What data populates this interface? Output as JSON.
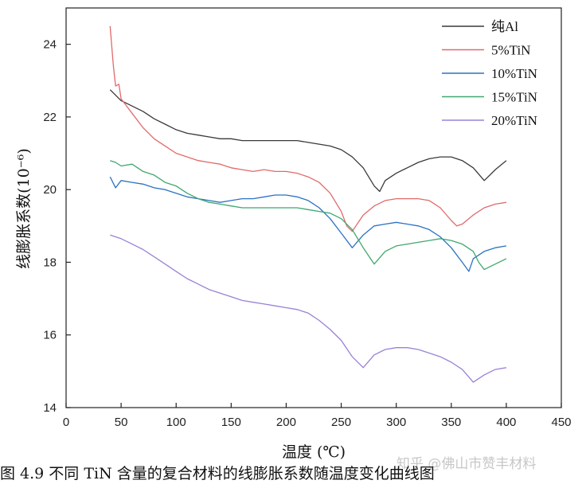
{
  "caption": "图 4.9  不同 TiN 含量的复合材料的线膨胀系数随温度变化曲线图",
  "watermark": "知乎 @佛山市赞丰材料",
  "chart_data": {
    "type": "line",
    "xlabel": "温度 (℃)",
    "ylabel": "线膨胀系数(10⁻⁶)",
    "xlim": [
      0,
      450
    ],
    "ylim": [
      14,
      25
    ],
    "xticks": [
      0,
      50,
      100,
      150,
      200,
      250,
      300,
      350,
      400,
      450
    ],
    "yticks": [
      14,
      16,
      18,
      20,
      22,
      24
    ],
    "grid": false,
    "legend_position": "top-right",
    "series": [
      {
        "name": "纯Al",
        "color": "#3a3a3a",
        "x": [
          40,
          50,
          60,
          70,
          80,
          90,
          100,
          110,
          120,
          130,
          140,
          150,
          160,
          170,
          180,
          190,
          200,
          210,
          220,
          230,
          240,
          250,
          260,
          270,
          280,
          285,
          290,
          300,
          310,
          320,
          330,
          340,
          350,
          360,
          370,
          380,
          390,
          400
        ],
        "y": [
          22.75,
          22.45,
          22.3,
          22.15,
          21.95,
          21.8,
          21.65,
          21.55,
          21.5,
          21.45,
          21.4,
          21.4,
          21.35,
          21.35,
          21.35,
          21.35,
          21.35,
          21.35,
          21.3,
          21.25,
          21.2,
          21.1,
          20.9,
          20.6,
          20.1,
          19.95,
          20.25,
          20.45,
          20.6,
          20.75,
          20.85,
          20.9,
          20.9,
          20.8,
          20.6,
          20.25,
          20.55,
          20.8
        ]
      },
      {
        "name": "5%TiN",
        "color": "#e06a6a",
        "x": [
          40,
          43,
          45,
          48,
          50,
          60,
          70,
          80,
          90,
          100,
          110,
          120,
          130,
          140,
          150,
          160,
          170,
          180,
          190,
          200,
          210,
          220,
          230,
          240,
          250,
          255,
          260,
          270,
          280,
          290,
          300,
          310,
          320,
          330,
          340,
          350,
          355,
          360,
          370,
          380,
          390,
          400
        ],
        "y": [
          24.5,
          23.4,
          22.85,
          22.9,
          22.5,
          22.1,
          21.7,
          21.4,
          21.2,
          21.0,
          20.9,
          20.8,
          20.75,
          20.7,
          20.6,
          20.55,
          20.5,
          20.55,
          20.5,
          20.5,
          20.45,
          20.35,
          20.2,
          19.9,
          19.4,
          19.0,
          18.85,
          19.3,
          19.55,
          19.7,
          19.75,
          19.75,
          19.75,
          19.7,
          19.5,
          19.15,
          19.0,
          19.05,
          19.3,
          19.5,
          19.6,
          19.65
        ]
      },
      {
        "name": "10%TiN",
        "color": "#2b72c4",
        "x": [
          40,
          45,
          50,
          60,
          70,
          80,
          90,
          100,
          110,
          120,
          130,
          140,
          150,
          160,
          170,
          180,
          190,
          200,
          210,
          220,
          230,
          240,
          250,
          260,
          270,
          280,
          290,
          300,
          310,
          320,
          330,
          340,
          350,
          360,
          366,
          370,
          380,
          390,
          400
        ],
        "y": [
          20.35,
          20.05,
          20.25,
          20.2,
          20.15,
          20.05,
          20.0,
          19.9,
          19.8,
          19.75,
          19.7,
          19.65,
          19.7,
          19.75,
          19.75,
          19.8,
          19.85,
          19.85,
          19.8,
          19.7,
          19.5,
          19.2,
          18.8,
          18.4,
          18.75,
          19.0,
          19.05,
          19.1,
          19.05,
          19.0,
          18.9,
          18.7,
          18.4,
          18.0,
          17.75,
          18.1,
          18.3,
          18.4,
          18.45
        ]
      },
      {
        "name": "15%TiN",
        "color": "#3fa86e",
        "x": [
          40,
          45,
          50,
          60,
          70,
          80,
          90,
          100,
          110,
          120,
          130,
          140,
          150,
          160,
          170,
          180,
          190,
          200,
          210,
          220,
          230,
          240,
          250,
          260,
          270,
          280,
          290,
          300,
          310,
          320,
          330,
          340,
          350,
          360,
          370,
          375,
          380,
          390,
          400
        ],
        "y": [
          20.8,
          20.75,
          20.65,
          20.7,
          20.5,
          20.4,
          20.2,
          20.1,
          19.9,
          19.75,
          19.65,
          19.6,
          19.55,
          19.5,
          19.5,
          19.5,
          19.5,
          19.5,
          19.5,
          19.45,
          19.4,
          19.35,
          19.2,
          18.9,
          18.4,
          17.95,
          18.3,
          18.45,
          18.5,
          18.55,
          18.6,
          18.65,
          18.6,
          18.5,
          18.3,
          18.0,
          17.8,
          17.95,
          18.1
        ]
      },
      {
        "name": "20%TiN",
        "color": "#9a82d6",
        "x": [
          40,
          45,
          50,
          60,
          70,
          80,
          90,
          100,
          110,
          120,
          130,
          140,
          150,
          160,
          170,
          180,
          190,
          200,
          210,
          220,
          230,
          240,
          250,
          260,
          270,
          280,
          290,
          300,
          310,
          320,
          330,
          340,
          350,
          360,
          370,
          380,
          390,
          400
        ],
        "y": [
          18.75,
          18.7,
          18.65,
          18.5,
          18.35,
          18.15,
          17.95,
          17.75,
          17.55,
          17.4,
          17.25,
          17.15,
          17.05,
          16.95,
          16.9,
          16.85,
          16.8,
          16.75,
          16.7,
          16.6,
          16.4,
          16.15,
          15.85,
          15.4,
          15.1,
          15.45,
          15.6,
          15.65,
          15.65,
          15.6,
          15.5,
          15.4,
          15.25,
          15.05,
          14.7,
          14.9,
          15.05,
          15.1
        ]
      }
    ]
  }
}
